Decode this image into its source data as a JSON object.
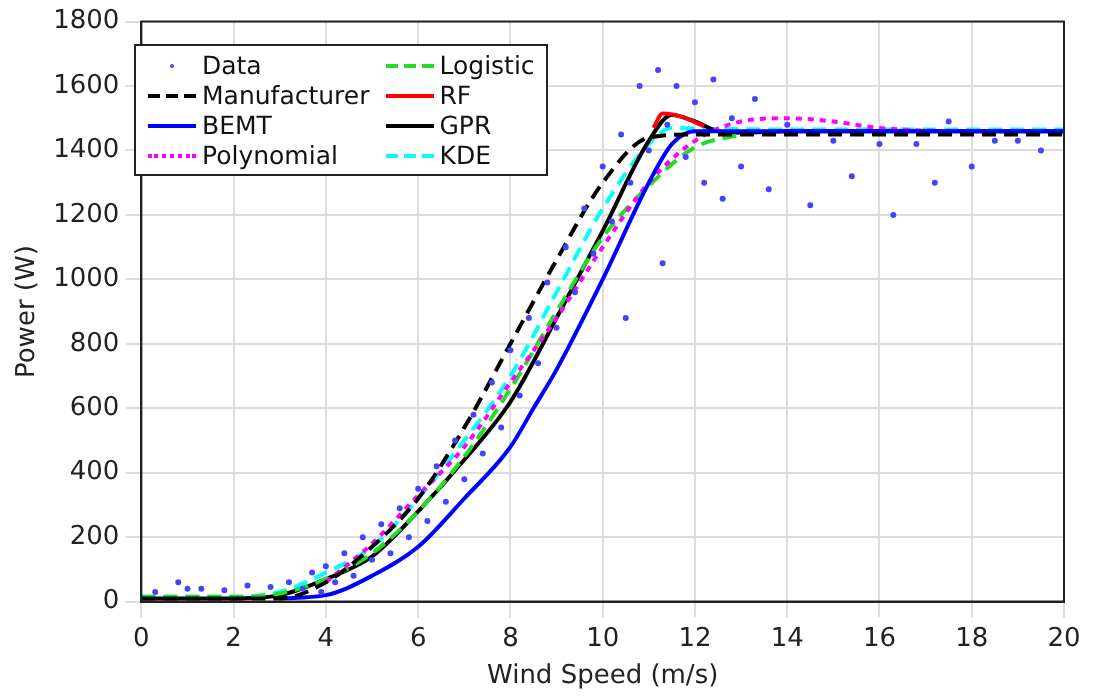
{
  "chart_data": {
    "type": "line",
    "xlabel": "Wind Speed (m/s)",
    "ylabel": "Power (W)",
    "xlim": [
      0,
      20
    ],
    "ylim": [
      0,
      1800
    ],
    "xticks": [
      0,
      2,
      4,
      6,
      8,
      10,
      12,
      14,
      16,
      18,
      20
    ],
    "yticks": [
      0,
      200,
      400,
      600,
      800,
      1000,
      1200,
      1400,
      1600,
      1800
    ],
    "grid": true,
    "legend": "top left",
    "series": [
      {
        "name": "Data",
        "type": "scatter",
        "marker": "circle",
        "color": "#4444ff",
        "x": [
          0.3,
          0.8,
          1,
          1.3,
          1.8,
          2.3,
          2.8,
          3.2,
          3.5,
          3.7,
          3.9,
          4,
          4.2,
          4.4,
          4.6,
          4.8,
          5,
          5.2,
          5.4,
          5.6,
          5.8,
          6,
          6.2,
          6.4,
          6.6,
          6.8,
          7,
          7.2,
          7.4,
          7.6,
          7.8,
          8,
          8.2,
          8.4,
          8.6,
          8.8,
          9,
          9.2,
          9.4,
          9.6,
          9.8,
          10,
          10.2,
          10.4,
          10.5,
          10.6,
          10.8,
          11,
          11.2,
          11.3,
          11.4,
          11.6,
          11.8,
          12,
          12.2,
          12.4,
          12.6,
          12.8,
          13,
          13.3,
          13.6,
          14,
          14.5,
          15,
          15.4,
          16,
          16.3,
          16.8,
          17.2,
          17.5,
          18,
          18.5,
          19,
          19.5
        ],
        "values": [
          30,
          60,
          40,
          40,
          35,
          50,
          45,
          60,
          40,
          90,
          30,
          110,
          60,
          150,
          80,
          200,
          130,
          240,
          150,
          290,
          200,
          350,
          250,
          420,
          310,
          500,
          380,
          580,
          460,
          680,
          540,
          780,
          640,
          880,
          740,
          990,
          850,
          1100,
          960,
          1220,
          1080,
          1350,
          1180,
          1450,
          880,
          1300,
          1600,
          1400,
          1650,
          1050,
          1480,
          1600,
          1380,
          1550,
          1300,
          1620,
          1250,
          1500,
          1350,
          1560,
          1280,
          1480,
          1230,
          1430,
          1320,
          1420,
          1200,
          1420,
          1300,
          1490,
          1350,
          1430,
          1430,
          1400
        ]
      },
      {
        "name": "Manufacturer",
        "line_style": "dashed",
        "color": "#000000",
        "x": [
          0,
          3,
          4,
          5,
          6,
          7,
          8,
          9,
          10,
          11,
          12,
          14,
          16,
          18,
          20
        ],
        "values": [
          10,
          10,
          60,
          170,
          320,
          540,
          800,
          1060,
          1300,
          1440,
          1450,
          1450,
          1450,
          1450,
          1450
        ]
      },
      {
        "name": "BEMT",
        "line_style": "solid",
        "color": "#0000ff",
        "x": [
          3,
          4,
          5,
          6,
          7,
          8,
          8.5,
          9,
          10,
          11,
          11.5,
          12,
          14,
          16,
          18,
          20
        ],
        "values": [
          10,
          20,
          80,
          170,
          320,
          480,
          600,
          720,
          1000,
          1300,
          1420,
          1460,
          1460,
          1460,
          1460,
          1460
        ]
      },
      {
        "name": "Polynomial",
        "line_style": "dotted",
        "color": "#ff00ff",
        "x": [
          4,
          5,
          6,
          7,
          8,
          9,
          10,
          11,
          12,
          13,
          14,
          15,
          16,
          18,
          20
        ],
        "values": [
          60,
          180,
          330,
          480,
          680,
          880,
          1100,
          1300,
          1430,
          1490,
          1500,
          1490,
          1470,
          1460,
          1460
        ]
      },
      {
        "name": "Logistic",
        "line_style": "dashed",
        "color": "#22dd22",
        "x": [
          0,
          2,
          3,
          4,
          5,
          6,
          7,
          8,
          9,
          10,
          11,
          12,
          13
        ],
        "values": [
          15,
          15,
          25,
          70,
          150,
          280,
          450,
          660,
          900,
          1130,
          1290,
          1410,
          1450
        ]
      },
      {
        "name": "RF",
        "line_style": "solid",
        "color": "#ff0000",
        "x": [
          11.1,
          11.3,
          11.7,
          12.2
        ],
        "values": [
          1470,
          1515,
          1505,
          1475
        ]
      },
      {
        "name": "GPR",
        "line_style": "solid",
        "color": "#000000",
        "x": [
          0,
          2,
          3,
          4,
          5,
          6,
          7,
          8,
          9,
          10,
          11,
          11.5,
          12,
          12.5,
          13,
          14,
          16,
          18,
          20
        ],
        "values": [
          10,
          10,
          20,
          70,
          140,
          280,
          440,
          620,
          880,
          1150,
          1430,
          1510,
          1490,
          1460,
          1455,
          1460,
          1460,
          1460,
          1460
        ]
      },
      {
        "name": "KDE",
        "line_style": "dashed",
        "color": "#00ffff",
        "x": [
          0,
          2,
          3,
          4,
          5,
          6,
          7,
          8,
          9,
          10,
          11,
          11.5,
          12,
          14,
          16,
          18,
          20
        ],
        "values": [
          15,
          15,
          30,
          90,
          170,
          320,
          500,
          700,
          960,
          1220,
          1420,
          1470,
          1468,
          1465,
          1465,
          1465,
          1465
        ]
      }
    ]
  }
}
